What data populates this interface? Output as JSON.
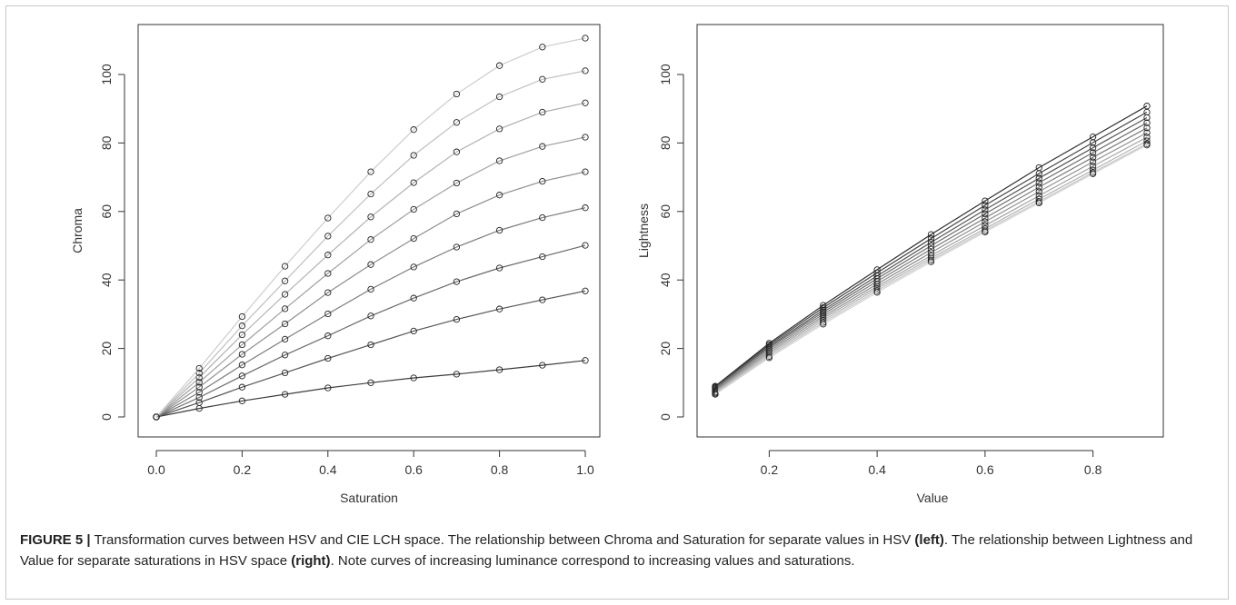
{
  "caption": {
    "label": "FIGURE 5 |",
    "t1": " Transformation curves between HSV and CIE LCH space. The relationship between Chroma and Saturation for separate values in HSV ",
    "b1": "(left)",
    "t2": ". The relationship between Lightness and Value for separate saturations in HSV space ",
    "b2": "(right)",
    "t3": ". Note curves of increasing luminance correspond to increasing values and saturations."
  },
  "chart_data": [
    {
      "type": "line",
      "title": "",
      "xlabel": "Saturation",
      "ylabel": "Chroma",
      "xlim": [
        0.0,
        1.0
      ],
      "ylim": [
        0,
        110
      ],
      "xticks": [
        "0.0",
        "0.2",
        "0.4",
        "0.6",
        "0.8",
        "1.0"
      ],
      "yticks": [
        "0",
        "20",
        "40",
        "60",
        "80",
        "100"
      ],
      "x": [
        0.0,
        0.1,
        0.2,
        0.3,
        0.4,
        0.5,
        0.6,
        0.7,
        0.8,
        0.9,
        1.0
      ],
      "marker": "open-circle",
      "series_colors": [
        "#3c3c3c",
        "#565656",
        "#6a6a6a",
        "#7c7c7c",
        "#8e8e8e",
        "#a0a0a0",
        "#b0b0b0",
        "#c0c0c0",
        "#cdcdcd"
      ],
      "series": [
        {
          "values": [
            0,
            2.5,
            4.7,
            6.6,
            8.5,
            10.0,
            11.4,
            12.5,
            13.8,
            15.1,
            16.5
          ]
        },
        {
          "values": [
            0,
            4.2,
            8.7,
            12.9,
            17.1,
            21.1,
            25.1,
            28.5,
            31.5,
            34.2,
            36.8
          ]
        },
        {
          "values": [
            0,
            5.7,
            12.0,
            18.1,
            23.7,
            29.5,
            34.7,
            39.5,
            43.5,
            46.8,
            50.1
          ]
        },
        {
          "values": [
            0,
            7.2,
            15.2,
            22.7,
            30.1,
            37.3,
            43.8,
            49.6,
            54.5,
            58.2,
            61.1
          ]
        },
        {
          "values": [
            0,
            8.7,
            18.3,
            27.2,
            36.3,
            44.5,
            52.1,
            59.3,
            64.8,
            68.8,
            71.6
          ]
        },
        {
          "values": [
            0,
            10.1,
            21.1,
            31.6,
            41.9,
            51.8,
            60.6,
            68.3,
            74.8,
            79.0,
            81.7
          ]
        },
        {
          "values": [
            0,
            11.5,
            24.0,
            35.8,
            47.3,
            58.4,
            68.4,
            77.4,
            84.1,
            89.0,
            91.7
          ]
        },
        {
          "values": [
            0,
            12.8,
            26.6,
            39.7,
            52.8,
            65.1,
            76.4,
            86.0,
            93.5,
            98.6,
            101.1
          ]
        },
        {
          "values": [
            0,
            14.2,
            29.3,
            44.0,
            58.1,
            71.6,
            83.9,
            94.3,
            102.6,
            108.0,
            110.6
          ]
        }
      ]
    },
    {
      "type": "line",
      "title": "",
      "xlabel": "Value",
      "ylabel": "Lightness",
      "xlim": [
        0.1,
        0.9
      ],
      "ylim": [
        0,
        100
      ],
      "xticks": [
        "0.2",
        "0.4",
        "0.6",
        "0.8"
      ],
      "yticks": [
        "0",
        "20",
        "40",
        "60",
        "80",
        "100"
      ],
      "x": [
        0.1,
        0.2,
        0.3,
        0.4,
        0.5,
        0.6,
        0.7,
        0.8,
        0.9
      ],
      "marker": "open-circle",
      "series_colors": [
        "#2e2e2e",
        "#444444",
        "#575757",
        "#6a6a6a",
        "#7d7d7d",
        "#8f8f8f",
        "#a2a2a2",
        "#b4b4b4",
        "#c6c6c6",
        "#d6d6d6"
      ],
      "series": [
        {
          "values": [
            9.0,
            21.5,
            32.6,
            43.0,
            53.3,
            63.1,
            72.8,
            81.8,
            90.8
          ]
        },
        {
          "values": [
            8.8,
            21.1,
            31.9,
            42.1,
            52.1,
            61.8,
            71.1,
            80.1,
            89.0
          ]
        },
        {
          "values": [
            8.6,
            20.6,
            31.2,
            41.2,
            51.0,
            60.5,
            69.7,
            78.6,
            87.4
          ]
        },
        {
          "values": [
            8.4,
            20.2,
            30.6,
            40.4,
            50.0,
            59.3,
            68.4,
            77.2,
            85.9
          ]
        },
        {
          "values": [
            8.1,
            19.7,
            30.0,
            39.6,
            49.0,
            58.1,
            67.1,
            75.8,
            84.4
          ]
        },
        {
          "values": [
            7.8,
            19.2,
            29.4,
            38.8,
            48.0,
            57.0,
            65.8,
            74.5,
            83.0
          ]
        },
        {
          "values": [
            7.5,
            18.7,
            28.8,
            38.1,
            47.1,
            55.9,
            64.6,
            73.2,
            81.7
          ]
        },
        {
          "values": [
            7.2,
            18.2,
            28.2,
            37.5,
            46.4,
            55.0,
            63.6,
            72.1,
            80.6
          ]
        },
        {
          "values": [
            6.9,
            17.7,
            27.6,
            36.9,
            45.8,
            54.4,
            62.9,
            71.4,
            79.8
          ]
        },
        {
          "values": [
            6.6,
            17.3,
            27.1,
            36.4,
            45.3,
            54.0,
            62.5,
            71.0,
            79.4
          ]
        }
      ]
    }
  ]
}
